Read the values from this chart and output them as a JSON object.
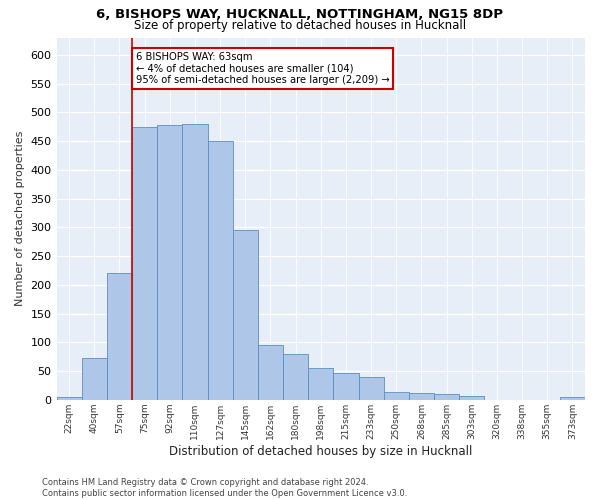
{
  "title_line1": "6, BISHOPS WAY, HUCKNALL, NOTTINGHAM, NG15 8DP",
  "title_line2": "Size of property relative to detached houses in Hucknall",
  "xlabel": "Distribution of detached houses by size in Hucknall",
  "ylabel": "Number of detached properties",
  "categories": [
    "22sqm",
    "40sqm",
    "57sqm",
    "75sqm",
    "92sqm",
    "110sqm",
    "127sqm",
    "145sqm",
    "162sqm",
    "180sqm",
    "198sqm",
    "215sqm",
    "233sqm",
    "250sqm",
    "268sqm",
    "285sqm",
    "303sqm",
    "320sqm",
    "338sqm",
    "355sqm",
    "373sqm"
  ],
  "values": [
    5,
    72,
    220,
    475,
    477,
    480,
    450,
    295,
    95,
    80,
    55,
    47,
    40,
    13,
    12,
    10,
    6,
    0,
    0,
    0,
    5
  ],
  "bar_color": "#aec6e8",
  "bar_edge_color": "#5a8fc0",
  "vline_color": "#cc0000",
  "vline_x": 2.5,
  "annotation_text": "6 BISHOPS WAY: 63sqm\n← 4% of detached houses are smaller (104)\n95% of semi-detached houses are larger (2,209) →",
  "annotation_box_color": "#cc0000",
  "ylim": [
    0,
    630
  ],
  "yticks": [
    0,
    50,
    100,
    150,
    200,
    250,
    300,
    350,
    400,
    450,
    500,
    550,
    600
  ],
  "background_color": "#e8eef8",
  "footer_text": "Contains HM Land Registry data © Crown copyright and database right 2024.\nContains public sector information licensed under the Open Government Licence v3.0.",
  "title_fontsize": 9.5,
  "subtitle_fontsize": 8.5,
  "figsize": [
    6.0,
    5.0
  ],
  "dpi": 100
}
